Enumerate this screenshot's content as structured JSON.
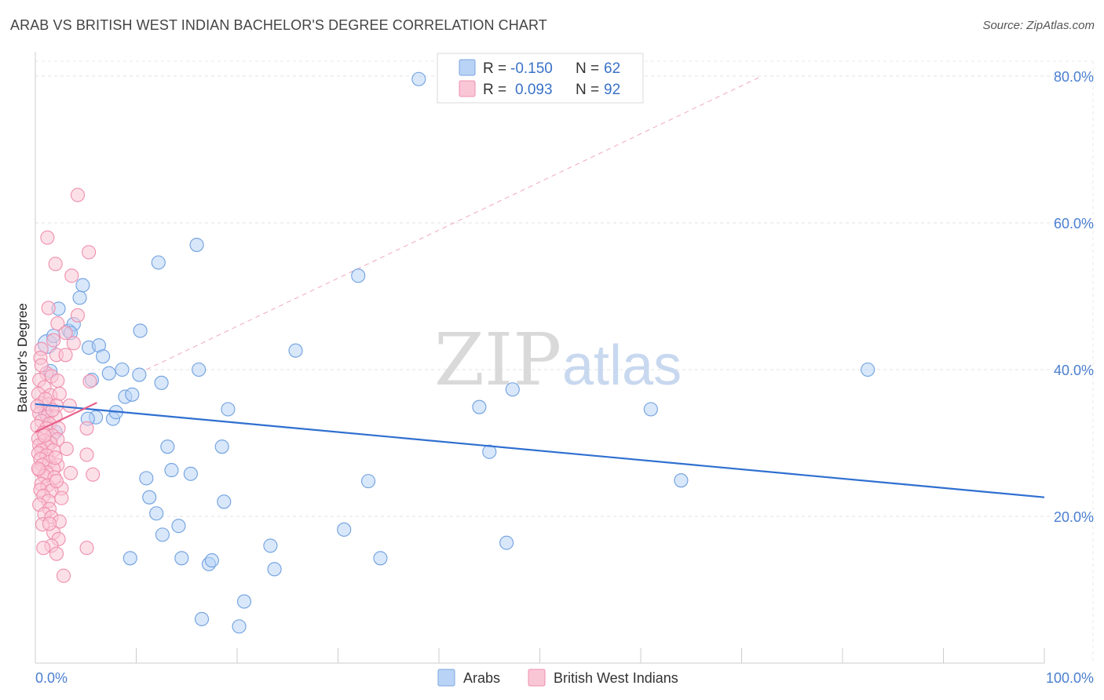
{
  "title": "ARAB VS BRITISH WEST INDIAN BACHELOR'S DEGREE CORRELATION CHART",
  "source": "Source: ZipAtlas.com",
  "watermark": {
    "zip": "ZIP",
    "atlas": "atlas"
  },
  "legend": {
    "r_label": "R =",
    "n_label": "N =",
    "rows": [
      {
        "name": "Arabs",
        "r": "-0.150",
        "n": "62",
        "fill": "#b8d3f5",
        "stroke": "#7ba6e0"
      },
      {
        "name": "British West Indians",
        "r": "0.093",
        "n": "92",
        "fill": "#f9c6d6",
        "stroke": "#ef8fae"
      }
    ]
  },
  "chart_data": {
    "type": "scatter",
    "title": "ARAB VS BRITISH WEST INDIAN BACHELOR'S DEGREE CORRELATION CHART",
    "xlabel": "",
    "ylabel": "Bachelor's Degree",
    "xlim": [
      0,
      100
    ],
    "ylim": [
      0,
      82
    ],
    "x_tick_labels": [
      {
        "value": 0,
        "label": "0.0%"
      },
      {
        "value": 100,
        "label": "100.0%"
      }
    ],
    "y_tick_labels": [
      {
        "value": 20,
        "label": "20.0%"
      },
      {
        "value": 40,
        "label": "40.0%"
      },
      {
        "value": 60,
        "label": "60.0%"
      },
      {
        "value": 80,
        "label": "80.0%"
      }
    ],
    "grid": true,
    "reference_line": {
      "style": "dashed",
      "points": [
        [
          11,
          40
        ],
        [
          72,
          80
        ]
      ]
    },
    "series": [
      {
        "name": "Arabs",
        "color": "#6fa0e0",
        "fill": "#b8d3f5",
        "trend": {
          "x": [
            0,
            100
          ],
          "y": [
            35.3,
            22.6
          ],
          "color": "#2f6fd0"
        },
        "points": [
          [
            38,
            79.6
          ],
          [
            1.2,
            43.5
          ],
          [
            1.8,
            44.6
          ],
          [
            3.3,
            45.3
          ],
          [
            2.3,
            48.3
          ],
          [
            3.8,
            46.2
          ],
          [
            4.7,
            51.5
          ],
          [
            4.4,
            49.8
          ],
          [
            1.5,
            39.8
          ],
          [
            3.5,
            45.0
          ],
          [
            5.3,
            43.0
          ],
          [
            6.3,
            43.3
          ],
          [
            6.7,
            41.8
          ],
          [
            5.6,
            38.6
          ],
          [
            7.3,
            39.5
          ],
          [
            8.6,
            40.0
          ],
          [
            10.3,
            39.3
          ],
          [
            10.4,
            45.3
          ],
          [
            12.2,
            54.6
          ],
          [
            16.0,
            57.0
          ],
          [
            12.5,
            38.2
          ],
          [
            8.9,
            36.3
          ],
          [
            9.6,
            36.6
          ],
          [
            6.0,
            33.5
          ],
          [
            7.7,
            33.3
          ],
          [
            8.0,
            34.2
          ],
          [
            16.2,
            40.0
          ],
          [
            19.1,
            34.6
          ],
          [
            13.1,
            29.5
          ],
          [
            18.5,
            29.5
          ],
          [
            11.0,
            25.2
          ],
          [
            13.5,
            26.3
          ],
          [
            15.4,
            25.8
          ],
          [
            11.3,
            22.6
          ],
          [
            12.0,
            20.4
          ],
          [
            18.7,
            22.0
          ],
          [
            14.2,
            18.7
          ],
          [
            12.6,
            17.5
          ],
          [
            25.8,
            42.6
          ],
          [
            32.0,
            52.8
          ],
          [
            44.0,
            34.9
          ],
          [
            47.3,
            37.3
          ],
          [
            45.0,
            28.8
          ],
          [
            33.0,
            24.8
          ],
          [
            30.6,
            18.2
          ],
          [
            34.2,
            14.3
          ],
          [
            46.7,
            16.4
          ],
          [
            61.0,
            34.6
          ],
          [
            64.0,
            24.9
          ],
          [
            82.5,
            40.0
          ],
          [
            9.4,
            14.3
          ],
          [
            14.5,
            14.3
          ],
          [
            17.2,
            13.5
          ],
          [
            17.5,
            14.0
          ],
          [
            23.7,
            12.8
          ],
          [
            23.3,
            16.0
          ],
          [
            20.7,
            8.4
          ],
          [
            16.5,
            6.0
          ],
          [
            20.2,
            5.0
          ],
          [
            5.2,
            33.3
          ],
          [
            1.0,
            34.0
          ],
          [
            2.0,
            31.5
          ]
        ]
      },
      {
        "name": "British West Indians",
        "color": "#ef8fae",
        "fill": "#f9c6d6",
        "trend": {
          "x": [
            0,
            6.1
          ],
          "y": [
            31.5,
            35.5
          ],
          "color": "#e8628c"
        },
        "points": [
          [
            4.2,
            63.8
          ],
          [
            1.2,
            58.0
          ],
          [
            2.0,
            54.4
          ],
          [
            5.3,
            56.0
          ],
          [
            3.6,
            52.8
          ],
          [
            1.3,
            48.4
          ],
          [
            4.2,
            47.4
          ],
          [
            2.2,
            46.3
          ],
          [
            0.6,
            42.8
          ],
          [
            1.8,
            44.0
          ],
          [
            3.0,
            45.0
          ],
          [
            3.8,
            43.6
          ],
          [
            2.1,
            42.0
          ],
          [
            3.0,
            42.0
          ],
          [
            0.5,
            41.6
          ],
          [
            1.1,
            39.5
          ],
          [
            1.6,
            39.1
          ],
          [
            0.4,
            38.6
          ],
          [
            2.2,
            38.5
          ],
          [
            0.9,
            37.6
          ],
          [
            5.4,
            38.4
          ],
          [
            0.3,
            36.7
          ],
          [
            1.5,
            36.5
          ],
          [
            2.4,
            36.7
          ],
          [
            0.6,
            35.4
          ],
          [
            1.3,
            35.3
          ],
          [
            2.1,
            35.1
          ],
          [
            3.4,
            35.1
          ],
          [
            0.4,
            34.0
          ],
          [
            1.2,
            33.6
          ],
          [
            2.0,
            33.6
          ],
          [
            0.6,
            33.0
          ],
          [
            1.4,
            32.6
          ],
          [
            0.2,
            32.3
          ],
          [
            1.1,
            32.0
          ],
          [
            2.3,
            32.0
          ],
          [
            5.1,
            32.0
          ],
          [
            0.8,
            31.4
          ],
          [
            1.7,
            31.0
          ],
          [
            0.3,
            30.6
          ],
          [
            2.2,
            30.5
          ],
          [
            0.9,
            30.3
          ],
          [
            1.5,
            30.0
          ],
          [
            0.4,
            29.7
          ],
          [
            1.2,
            29.5
          ],
          [
            3.1,
            29.2
          ],
          [
            0.6,
            29.0
          ],
          [
            1.8,
            29.0
          ],
          [
            0.3,
            28.6
          ],
          [
            1.1,
            28.3
          ],
          [
            5.1,
            28.4
          ],
          [
            0.5,
            27.8
          ],
          [
            1.4,
            27.4
          ],
          [
            2.2,
            27.0
          ],
          [
            0.7,
            27.0
          ],
          [
            1.8,
            26.5
          ],
          [
            0.4,
            26.3
          ],
          [
            1.1,
            26.0
          ],
          [
            3.5,
            25.9
          ],
          [
            5.7,
            25.7
          ],
          [
            0.9,
            25.5
          ],
          [
            1.9,
            25.3
          ],
          [
            0.6,
            24.4
          ],
          [
            1.2,
            24.2
          ],
          [
            2.6,
            23.8
          ],
          [
            0.5,
            23.6
          ],
          [
            1.6,
            23.5
          ],
          [
            0.8,
            22.8
          ],
          [
            2.6,
            22.5
          ],
          [
            1.3,
            22.1
          ],
          [
            0.4,
            21.6
          ],
          [
            1.4,
            21.0
          ],
          [
            0.9,
            20.3
          ],
          [
            1.6,
            19.9
          ],
          [
            2.4,
            19.3
          ],
          [
            0.7,
            18.9
          ],
          [
            1.8,
            17.8
          ],
          [
            2.3,
            16.9
          ],
          [
            1.6,
            16.0
          ],
          [
            0.8,
            15.7
          ],
          [
            5.1,
            15.7
          ],
          [
            2.1,
            14.9
          ],
          [
            2.8,
            11.9
          ],
          [
            0.6,
            40.6
          ],
          [
            1.0,
            36.0
          ],
          [
            0.2,
            35.0
          ],
          [
            1.7,
            34.5
          ],
          [
            0.9,
            31.0
          ],
          [
            2.0,
            28.0
          ],
          [
            0.3,
            26.5
          ],
          [
            1.4,
            19.0
          ],
          [
            2.1,
            24.8
          ]
        ]
      }
    ]
  }
}
